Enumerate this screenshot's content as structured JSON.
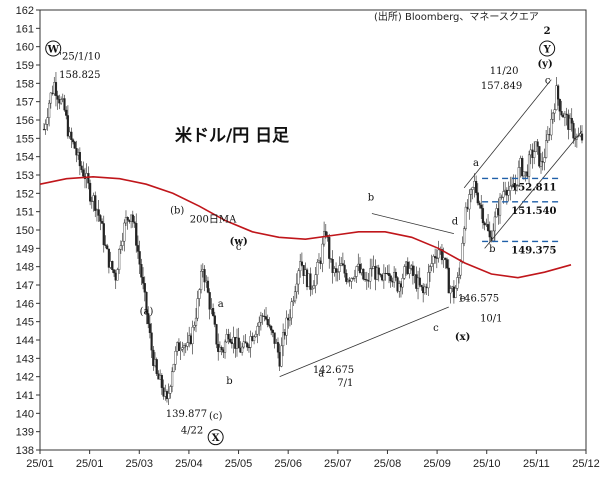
{
  "chart_data": {
    "type": "candlestick",
    "title": "米ドル/円 日足",
    "source": "(出所) Bloomberg、マネースクエア",
    "ylim": [
      138,
      162
    ],
    "y_ticks": [
      138,
      139,
      140,
      141,
      142,
      143,
      144,
      145,
      146,
      147,
      148,
      149,
      150,
      151,
      152,
      153,
      154,
      155,
      156,
      157,
      158,
      159,
      160,
      161,
      162
    ],
    "x_tick_labels": [
      "25/01",
      "25/01",
      "25/03",
      "25/04",
      "25/05",
      "25/06",
      "25/07",
      "25/08",
      "25/09",
      "25/10",
      "25/11",
      "25/12"
    ],
    "ma": {
      "name": "200日MA",
      "values": [
        152.5,
        152.8,
        152.9,
        152.8,
        152.5,
        152.0,
        151.3,
        150.5,
        149.9,
        149.6,
        149.5,
        149.7,
        149.9,
        149.9,
        149.6,
        149.0,
        148.2,
        147.6,
        147.4,
        147.7,
        148.1
      ]
    },
    "price_path": [
      [
        0,
        155.5
      ],
      [
        1,
        157.0
      ],
      [
        2,
        158.0
      ],
      [
        3,
        157.2
      ],
      [
        4,
        156.5
      ],
      [
        5,
        155.0
      ],
      [
        6,
        154.5
      ],
      [
        7,
        153.5
      ],
      [
        8,
        153.0
      ],
      [
        9,
        152.0
      ],
      [
        10,
        151.5
      ],
      [
        11,
        150.5
      ],
      [
        12,
        149.0
      ],
      [
        13,
        148.0
      ],
      [
        14,
        147.5
      ],
      [
        15,
        149.5
      ],
      [
        16,
        150.5
      ],
      [
        17,
        151.0
      ],
      [
        18,
        149.5
      ],
      [
        19,
        147.5
      ],
      [
        20,
        145.5
      ],
      [
        21,
        143.5
      ],
      [
        22,
        142.0
      ],
      [
        23,
        141.5
      ],
      [
        24,
        140.5
      ],
      [
        25,
        142.5
      ],
      [
        26,
        143.5
      ],
      [
        27,
        144.0
      ],
      [
        28,
        143.5
      ],
      [
        29,
        144.5
      ],
      [
        30,
        146.0
      ],
      [
        31,
        148.0
      ],
      [
        32,
        146.5
      ],
      [
        33,
        145.0
      ],
      [
        34,
        143.5
      ],
      [
        35,
        143.5
      ],
      [
        36,
        144.5
      ],
      [
        37,
        144.0
      ],
      [
        38,
        143.5
      ],
      [
        39,
        143.5
      ],
      [
        40,
        144.0
      ],
      [
        41,
        144.5
      ],
      [
        42,
        145.0
      ],
      [
        43,
        145.5
      ],
      [
        44,
        144.5
      ],
      [
        45,
        144.0
      ],
      [
        46,
        143.0
      ],
      [
        47,
        144.5
      ],
      [
        48,
        145.5
      ],
      [
        49,
        147.0
      ],
      [
        50,
        148.5
      ],
      [
        51,
        147.5
      ],
      [
        52,
        147.0
      ],
      [
        53,
        147.5
      ],
      [
        54,
        148.5
      ],
      [
        55,
        150.0
      ],
      [
        56,
        148.0
      ],
      [
        57,
        147.5
      ],
      [
        58,
        148.0
      ],
      [
        59,
        147.5
      ],
      [
        60,
        147.5
      ],
      [
        61,
        148.0
      ],
      [
        62,
        147.5
      ],
      [
        63,
        147.0
      ],
      [
        64,
        148.0
      ],
      [
        65,
        147.5
      ],
      [
        66,
        147.0
      ],
      [
        67,
        148.0
      ],
      [
        68,
        147.5
      ],
      [
        69,
        147.0
      ],
      [
        70,
        147.5
      ],
      [
        71,
        148.0
      ],
      [
        72,
        147.5
      ],
      [
        73,
        147.0
      ],
      [
        74,
        146.5
      ],
      [
        75,
        147.5
      ],
      [
        76,
        148.5
      ],
      [
        77,
        149.0
      ],
      [
        78,
        148.5
      ],
      [
        79,
        147.0
      ],
      [
        80,
        146.5
      ],
      [
        81,
        147.5
      ],
      [
        82,
        150.5
      ],
      [
        83,
        151.5
      ],
      [
        84,
        152.5
      ],
      [
        85,
        151.5
      ],
      [
        86,
        150.5
      ],
      [
        87,
        149.5
      ],
      [
        88,
        150.5
      ],
      [
        89,
        151.5
      ],
      [
        90,
        152.5
      ],
      [
        91,
        152.0
      ],
      [
        92,
        152.5
      ],
      [
        93,
        153.5
      ],
      [
        94,
        153.0
      ],
      [
        95,
        154.0
      ],
      [
        96,
        154.5
      ],
      [
        97,
        153.5
      ],
      [
        98,
        154.5
      ],
      [
        99,
        156.0
      ],
      [
        100,
        157.5
      ],
      [
        101,
        156.5
      ],
      [
        102,
        156.0
      ],
      [
        103,
        155.5
      ],
      [
        104,
        155.0
      ],
      [
        105,
        155.0
      ]
    ],
    "hlines": [
      {
        "value": 152.811,
        "label": "152.811"
      },
      {
        "value": 151.54,
        "label": "151.540"
      },
      {
        "value": 149.375,
        "label": "149.375"
      }
    ],
    "annotations": [
      {
        "text": "'25/1/10",
        "price": 159.3,
        "pos": 7
      },
      {
        "text": "158.825",
        "price": 158.3,
        "pos": 7
      },
      {
        "text": "(b)",
        "price": 150.9,
        "pos": 26
      },
      {
        "text": "(a)",
        "price": 145.4,
        "pos": 20
      },
      {
        "text": "200日MA",
        "price": 150.4,
        "pos": 33,
        "color": "red"
      },
      {
        "text": "(w)",
        "price": 149.2,
        "pos": 38,
        "color": "blue",
        "size": 13,
        "bold": true
      },
      {
        "text": "c",
        "price": 148.9,
        "pos": 38
      },
      {
        "text": "a",
        "price": 145.8,
        "pos": 34.5
      },
      {
        "text": "b",
        "price": 141.6,
        "pos": 36.2
      },
      {
        "text": "(c)",
        "price": 139.7,
        "pos": 33.5
      },
      {
        "text": "139.877",
        "price": 139.8,
        "pos": 27.8
      },
      {
        "text": "4/22",
        "price": 138.9,
        "pos": 28.9
      },
      {
        "text": "b",
        "price": 151.6,
        "pos": 63.8
      },
      {
        "text": "a",
        "price": 142.0,
        "pos": 54.1
      },
      {
        "text": "142.675",
        "price": 142.2,
        "pos": 56.5
      },
      {
        "text": "7/1",
        "price": 141.5,
        "pos": 58.8
      },
      {
        "text": "c",
        "price": 144.5,
        "pos": 76.5
      },
      {
        "text": "d",
        "price": 150.3,
        "pos": 80.2
      },
      {
        "text": "e",
        "price": 146.1,
        "pos": 81.7
      },
      {
        "text": "146.575",
        "price": 146.1,
        "pos": 84.8
      },
      {
        "text": "10/1",
        "price": 145.0,
        "pos": 87.3
      },
      {
        "text": "(x)",
        "price": 144.0,
        "pos": 81.7,
        "color": "blue",
        "size": 13,
        "bold": true
      },
      {
        "text": "a",
        "price": 153.5,
        "pos": 84.3
      },
      {
        "text": "b",
        "price": 148.8,
        "pos": 87.5
      },
      {
        "text": "11/20",
        "price": 158.5,
        "pos": 89.8
      },
      {
        "text": "157.849",
        "price": 157.7,
        "pos": 89.3
      },
      {
        "text": "c",
        "price": 158.0,
        "pos": 98.3
      },
      {
        "text": "(y)",
        "price": 158.9,
        "pos": 97.8,
        "color": "blue",
        "size": 13,
        "bold": true
      },
      {
        "text": "2",
        "price": 160.7,
        "pos": 98.2,
        "size": 18,
        "bold": true
      }
    ],
    "circled": [
      {
        "text": "W",
        "price": 159.9,
        "pos": 1.8
      },
      {
        "text": "X",
        "price": 138.7,
        "pos": 33.5
      },
      {
        "text": "Y",
        "price": 159.9,
        "pos": 98.2
      }
    ]
  }
}
